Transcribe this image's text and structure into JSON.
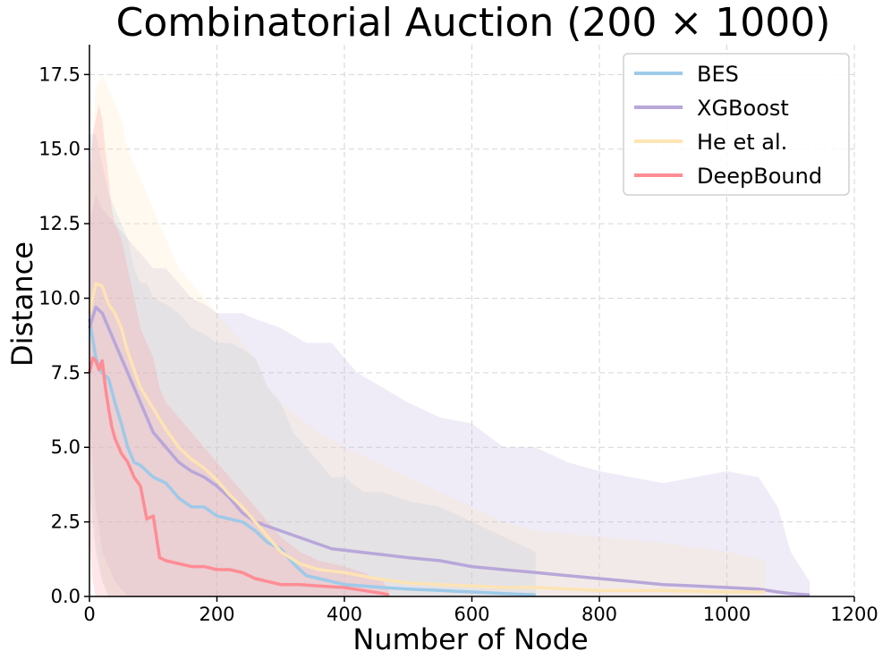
{
  "chart_data": {
    "type": "line",
    "title": "Combinatorial Auction (200 × 1000)",
    "xlabel": "Number of Node",
    "ylabel": "Distance",
    "xlim": [
      0,
      1200
    ],
    "ylim": [
      0,
      18.5
    ],
    "xticks": [
      0,
      200,
      400,
      600,
      800,
      1000,
      1200
    ],
    "xtick_labels": [
      "0",
      "200",
      "400",
      "600",
      "800",
      "1000",
      "1200"
    ],
    "yticks": [
      0,
      2.5,
      5,
      7.5,
      10,
      12.5,
      15,
      17.5
    ],
    "ytick_labels": [
      "0.0",
      "2.5",
      "5.0",
      "7.5",
      "10.0",
      "12.5",
      "15.0",
      "17.5"
    ],
    "grid": true,
    "legend_position": "top-right",
    "series": [
      {
        "name": "BES",
        "color": "#9ecae9",
        "x": [
          0,
          10,
          20,
          30,
          40,
          50,
          60,
          70,
          80,
          90,
          100,
          120,
          140,
          160,
          180,
          200,
          220,
          240,
          260,
          280,
          300,
          320,
          340,
          360,
          380,
          400,
          430,
          460,
          500,
          550,
          600,
          650,
          700
        ],
        "y": [
          9.3,
          8.0,
          7.5,
          7.3,
          6.5,
          5.8,
          5.0,
          4.5,
          4.4,
          4.2,
          4.0,
          3.8,
          3.3,
          3.0,
          3.0,
          2.7,
          2.6,
          2.5,
          2.2,
          1.8,
          1.6,
          1.1,
          0.7,
          0.6,
          0.5,
          0.4,
          0.35,
          0.3,
          0.25,
          0.2,
          0.15,
          0.1,
          0.05
        ],
        "band_upper": [
          15.5,
          15.5,
          14.5,
          13.5,
          13.0,
          12.5,
          12.0,
          11.0,
          10.5,
          10.5,
          10.0,
          9.8,
          9.5,
          9.0,
          8.8,
          8.5,
          8.5,
          8.3,
          8.0,
          7.0,
          6.5,
          5.5,
          5.0,
          4.5,
          4.0,
          4.0,
          3.5,
          3.5,
          3.2,
          3.0,
          2.5,
          2.0,
          1.5
        ],
        "band_lower": [
          3.5,
          1.5,
          0.5,
          0,
          0,
          0,
          0,
          0,
          0,
          0,
          0,
          0,
          0,
          0,
          0,
          0,
          0,
          0,
          0,
          0,
          0,
          0,
          0,
          0,
          0,
          0,
          0,
          0,
          0,
          0,
          0,
          0,
          0
        ]
      },
      {
        "name": "XGBoost",
        "color": "#b8a7d9",
        "x": [
          0,
          10,
          20,
          40,
          60,
          80,
          100,
          120,
          140,
          160,
          180,
          200,
          220,
          240,
          260,
          300,
          340,
          380,
          420,
          460,
          500,
          550,
          600,
          650,
          700,
          750,
          800,
          850,
          900,
          950,
          1000,
          1050,
          1080,
          1100,
          1130
        ],
        "y": [
          9.0,
          9.7,
          9.5,
          8.5,
          7.5,
          6.5,
          5.5,
          5.0,
          4.5,
          4.2,
          4.0,
          3.7,
          3.3,
          2.8,
          2.5,
          2.2,
          1.9,
          1.6,
          1.5,
          1.4,
          1.3,
          1.2,
          1.0,
          0.9,
          0.8,
          0.7,
          0.6,
          0.5,
          0.4,
          0.35,
          0.3,
          0.25,
          0.15,
          0.1,
          0.05
        ],
        "band_upper": [
          12.5,
          13.5,
          13.0,
          12.5,
          12.0,
          11.5,
          11.0,
          11.0,
          10.5,
          10.0,
          9.8,
          9.5,
          9.5,
          9.5,
          9.3,
          9.0,
          8.5,
          8.5,
          7.5,
          7.0,
          6.5,
          6.0,
          5.8,
          5.0,
          5.0,
          4.5,
          4.2,
          4.0,
          3.8,
          4.0,
          4.2,
          4.0,
          3.0,
          1.5,
          0.5
        ],
        "band_lower": [
          6.0,
          3.0,
          1.5,
          0.5,
          0,
          0,
          0,
          0,
          0,
          0,
          0,
          0,
          0,
          0,
          0,
          0,
          0,
          0,
          0,
          0,
          0,
          0,
          0,
          0,
          0,
          0,
          0,
          0,
          0,
          0,
          0,
          0,
          0,
          0,
          0
        ]
      },
      {
        "name": "He et al.",
        "color": "#fde4b4",
        "x": [
          0,
          10,
          20,
          30,
          40,
          50,
          60,
          80,
          100,
          120,
          140,
          160,
          180,
          200,
          220,
          240,
          260,
          280,
          300,
          330,
          360,
          400,
          450,
          500,
          550,
          600,
          650,
          700,
          800,
          900,
          1000,
          1060
        ],
        "y": [
          9.5,
          10.5,
          10.4,
          9.8,
          9.5,
          9.0,
          8.2,
          7.0,
          6.3,
          5.6,
          5.0,
          4.6,
          4.3,
          3.9,
          3.4,
          3.0,
          2.5,
          2.0,
          1.5,
          1.1,
          0.9,
          0.8,
          0.6,
          0.45,
          0.4,
          0.35,
          0.3,
          0.3,
          0.2,
          0.2,
          0.15,
          0.15
        ],
        "band_upper": [
          13.5,
          17.0,
          17.5,
          17.0,
          16.5,
          16.0,
          15.0,
          14.0,
          13.0,
          12.0,
          11.0,
          10.5,
          10.0,
          9.5,
          9.0,
          8.5,
          8.0,
          7.0,
          6.5,
          6.0,
          5.5,
          5.0,
          4.5,
          4.0,
          3.5,
          3.0,
          2.5,
          2.2,
          2.0,
          1.8,
          1.5,
          1.2
        ],
        "band_lower": [
          5.0,
          2.0,
          0.5,
          0,
          0,
          0,
          0,
          0,
          0,
          0,
          0,
          0,
          0,
          0,
          0,
          0,
          0,
          0,
          0,
          0,
          0,
          0,
          0,
          0,
          0,
          0,
          0,
          0,
          0,
          0,
          0,
          0
        ]
      },
      {
        "name": "DeepBound",
        "color": "#ff8c94",
        "x": [
          0,
          5,
          10,
          15,
          20,
          25,
          30,
          35,
          40,
          50,
          60,
          70,
          80,
          90,
          100,
          110,
          120,
          140,
          160,
          180,
          200,
          220,
          240,
          260,
          280,
          300,
          330,
          360,
          400,
          430,
          460,
          470
        ],
        "y": [
          7.5,
          8.0,
          7.9,
          7.6,
          7.9,
          7.0,
          6.3,
          5.7,
          5.3,
          4.8,
          4.5,
          4.0,
          3.7,
          2.6,
          2.7,
          1.3,
          1.2,
          1.1,
          1.0,
          1.0,
          0.9,
          0.9,
          0.8,
          0.6,
          0.5,
          0.4,
          0.4,
          0.35,
          0.3,
          0.2,
          0.1,
          0.05
        ],
        "band_upper": [
          14.0,
          15.5,
          16.0,
          16.5,
          16.0,
          15.0,
          14.0,
          13.0,
          12.5,
          12.0,
          11.0,
          10.0,
          9.0,
          8.5,
          8.0,
          7.0,
          6.5,
          6.0,
          5.5,
          5.0,
          4.5,
          4.0,
          3.5,
          3.0,
          2.5,
          2.0,
          1.5,
          1.2,
          1.0,
          0.8,
          0.5,
          0.2
        ],
        "band_lower": [
          2.0,
          0.5,
          0,
          0,
          0,
          0,
          0,
          0,
          0,
          0,
          0,
          0,
          0,
          0,
          0,
          0,
          0,
          0,
          0,
          0,
          0,
          0,
          0,
          0,
          0,
          0,
          0,
          0,
          0,
          0,
          0,
          0
        ]
      }
    ]
  }
}
